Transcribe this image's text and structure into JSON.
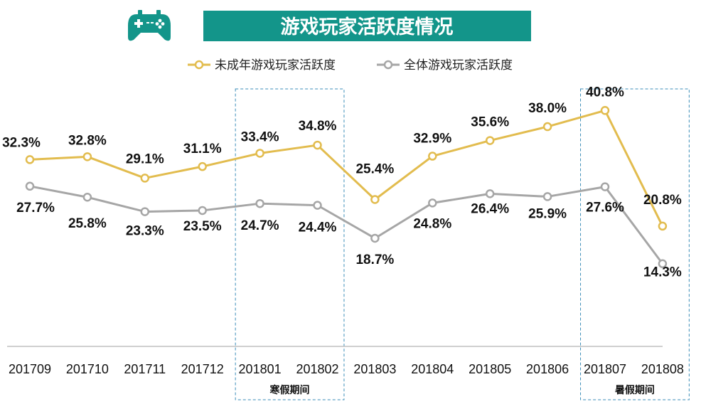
{
  "chart_data": {
    "type": "line",
    "title": "游戏玩家活跃度情况",
    "categories": [
      "201709",
      "201710",
      "201711",
      "201712",
      "201801",
      "201802",
      "201803",
      "201804",
      "201805",
      "201806",
      "201807",
      "201808"
    ],
    "series": [
      {
        "name": "未成年游戏玩家活跃度",
        "color": "#E2BC4E",
        "values": [
          32.3,
          32.8,
          29.1,
          31.1,
          33.4,
          34.8,
          25.4,
          32.9,
          35.6,
          38.0,
          40.8,
          20.8
        ],
        "labels": [
          "32.3%",
          "32.8%",
          "29.1%",
          "31.1%",
          "33.4%",
          "34.8%",
          "25.4%",
          "32.9%",
          "35.6%",
          "38.0%",
          "40.8%",
          "20.8%"
        ]
      },
      {
        "name": "全体游戏玩家活跃度",
        "color": "#A6A6A6",
        "values": [
          27.7,
          25.8,
          23.3,
          23.5,
          24.7,
          24.4,
          18.7,
          24.8,
          26.4,
          25.9,
          27.6,
          14.3
        ],
        "labels": [
          "27.7%",
          "25.8%",
          "23.3%",
          "23.5%",
          "24.7%",
          "24.4%",
          "18.7%",
          "24.8%",
          "26.4%",
          "25.9%",
          "27.6%",
          "14.3%"
        ]
      }
    ],
    "highlight_periods": [
      {
        "label": "寒假期间",
        "from": "201801",
        "to": "201802"
      },
      {
        "label": "暑假期间",
        "from": "201807",
        "to": "201808"
      }
    ],
    "ylim": [
      0,
      50
    ],
    "grid": false,
    "legend_position": "top-center"
  },
  "colors": {
    "title_bar": "#13958A",
    "title_text": "#FFFFFF",
    "icon": "#13958A",
    "period_box": "#3B8DB8"
  },
  "icon": "gamepad-icon"
}
